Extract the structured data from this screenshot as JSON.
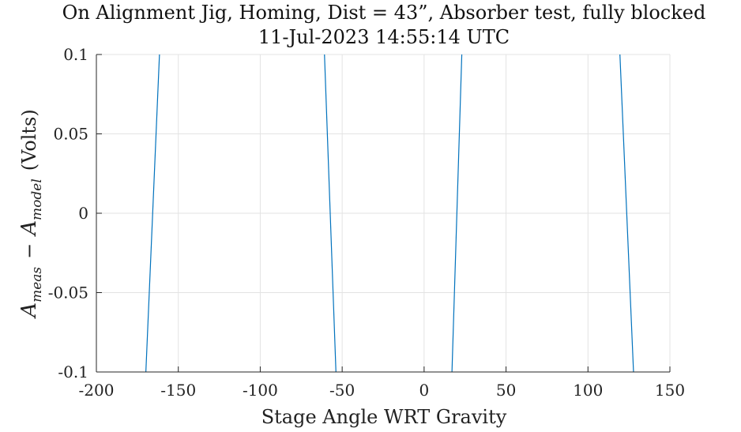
{
  "chart_data": {
    "type": "line",
    "title": "On Alignment Jig, Homing, Dist = 43”, Absorber test, fully blocked",
    "subtitle": "11-Jul-2023 14:55:14 UTC",
    "xlabel": "Stage Angle WRT Gravity",
    "ylabel": {
      "a1": "A",
      "sub1": "meas",
      "minus": "−",
      "a2": "A",
      "sub2": "model",
      "unit": "(Volts)"
    },
    "xlim": [
      -200,
      150
    ],
    "ylim": [
      -0.1,
      0.1
    ],
    "x_ticks": [
      -200,
      -150,
      -100,
      -50,
      0,
      50,
      100,
      150
    ],
    "x_tick_labels": [
      "-200",
      "-150",
      "-100",
      "-50",
      "0",
      "50",
      "100",
      "150"
    ],
    "y_ticks": [
      -0.1,
      -0.05,
      0,
      0.05,
      0.1
    ],
    "y_tick_labels": [
      "-0.1",
      "-0.05",
      "0",
      "0.05",
      "0.1"
    ],
    "grid": true,
    "line_color": "#0072bd",
    "series": [
      {
        "segments": [
          [
            [
              -169.8,
              -0.1
            ],
            [
              -161.5,
              0.1
            ]
          ],
          [
            [
              -60.8,
              0.1
            ],
            [
              -53.8,
              -0.1
            ]
          ],
          [
            [
              17.0,
              -0.1
            ],
            [
              23.0,
              0.1
            ]
          ],
          [
            [
              119.5,
              0.1
            ],
            [
              127.8,
              -0.1
            ]
          ]
        ]
      }
    ]
  }
}
